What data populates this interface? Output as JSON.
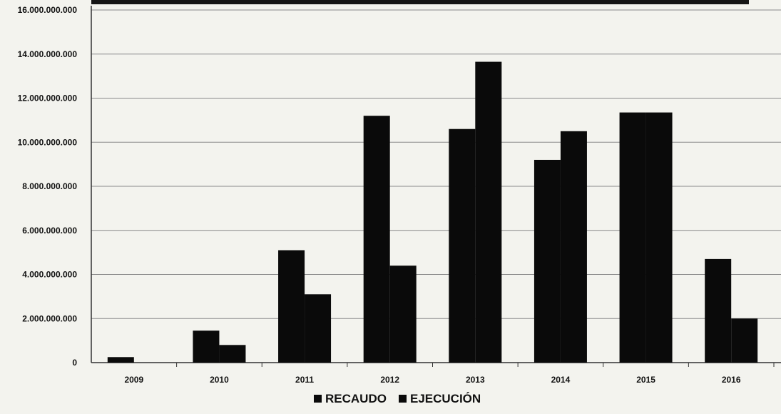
{
  "chart_data": {
    "type": "bar",
    "title": "",
    "xlabel": "",
    "ylabel": "",
    "categories": [
      "2009",
      "2010",
      "2011",
      "2012",
      "2013",
      "2014",
      "2015",
      "2016"
    ],
    "series": [
      {
        "name": "RECAUDO",
        "values": [
          250000000,
          1450000000,
          5100000000,
          11200000000,
          10600000000,
          9200000000,
          11350000000,
          4700000000
        ]
      },
      {
        "name": "EJECUCIÓN",
        "values": [
          0,
          800000000,
          3100000000,
          4400000000,
          13650000000,
          10500000000,
          11350000000,
          2000000000
        ]
      }
    ],
    "ylim": [
      0,
      16000000000
    ],
    "y_ticks": [
      "0",
      "2.000.000.000",
      "4.000.000.000",
      "6.000.000.000",
      "8.000.000.000",
      "10.000.000.000",
      "12.000.000.000",
      "14.000.000.000",
      "16.000.000.000"
    ],
    "grid": true,
    "legend_position": "bottom",
    "colors": {
      "bar": "#0a0a0a",
      "grid": "#8a8a8a",
      "background": "#f3f3ee"
    }
  }
}
